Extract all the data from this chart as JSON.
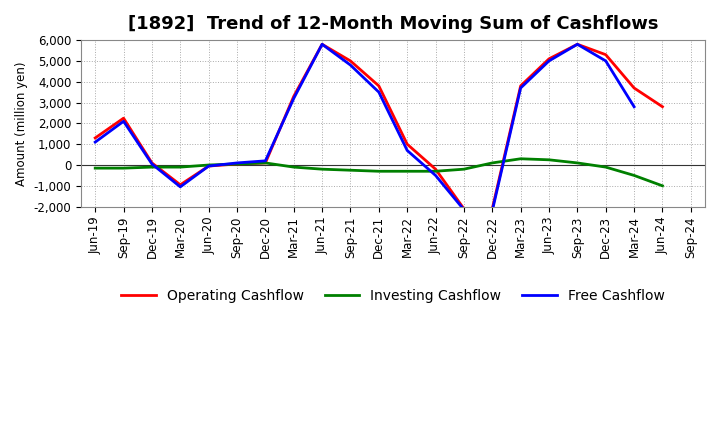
{
  "title": "[1892]  Trend of 12-Month Moving Sum of Cashflows",
  "ylabel": "Amount (million yen)",
  "ylim": [
    -2000,
    6000
  ],
  "yticks": [
    -2000,
    -1000,
    0,
    1000,
    2000,
    3000,
    4000,
    5000,
    6000
  ],
  "x_labels": [
    "Jun-19",
    "Sep-19",
    "Dec-19",
    "Mar-20",
    "Jun-20",
    "Sep-20",
    "Dec-20",
    "Mar-21",
    "Jun-21",
    "Sep-21",
    "Dec-21",
    "Mar-22",
    "Jun-22",
    "Sep-22",
    "Dec-22",
    "Mar-23",
    "Jun-23",
    "Sep-23",
    "Dec-23",
    "Mar-24",
    "Jun-24",
    "Sep-24"
  ],
  "operating": [
    1300,
    2250,
    100,
    -950,
    -50,
    50,
    100,
    3300,
    5800,
    5000,
    3800,
    1000,
    -200,
    -2100,
    -2100,
    3800,
    5100,
    5800,
    5300,
    3700,
    2800,
    null
  ],
  "investing": [
    -150,
    -150,
    -100,
    -100,
    0,
    50,
    100,
    -100,
    -200,
    -250,
    -300,
    -300,
    -300,
    -200,
    100,
    300,
    250,
    100,
    -100,
    -500,
    -1000,
    null
  ],
  "free": [
    1100,
    2100,
    50,
    -1050,
    -50,
    100,
    200,
    3200,
    5800,
    4800,
    3500,
    700,
    -500,
    -2150,
    -2200,
    3700,
    5000,
    5800,
    5000,
    2800,
    null,
    null
  ],
  "operating_color": "#ff0000",
  "investing_color": "#008000",
  "free_color": "#0000ff",
  "line_width": 2.0,
  "bg_color": "#ffffff",
  "plot_bg_color": "#ffffff",
  "title_fontsize": 13,
  "legend_fontsize": 10,
  "axis_fontsize": 8.5
}
